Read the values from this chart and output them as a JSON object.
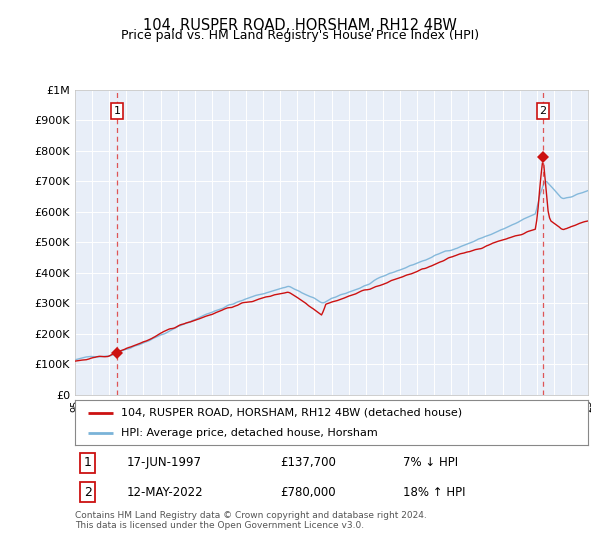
{
  "title": "104, RUSPER ROAD, HORSHAM, RH12 4BW",
  "subtitle": "Price paid vs. HM Land Registry's House Price Index (HPI)",
  "legend_line1": "104, RUSPER ROAD, HORSHAM, RH12 4BW (detached house)",
  "legend_line2": "HPI: Average price, detached house, Horsham",
  "annotation1_date": "17-JUN-1997",
  "annotation1_price": "£137,700",
  "annotation1_hpi": "7% ↓ HPI",
  "annotation2_date": "12-MAY-2022",
  "annotation2_price": "£780,000",
  "annotation2_hpi": "18% ↑ HPI",
  "footnote": "Contains HM Land Registry data © Crown copyright and database right 2024.\nThis data is licensed under the Open Government Licence v3.0.",
  "hpi_color": "#7ab3d8",
  "price_color": "#cc1111",
  "marker_color": "#cc1111",
  "dashed_color": "#dd4444",
  "background_plot": "#e8eef8",
  "ylim": [
    0,
    1000000
  ],
  "yticks": [
    0,
    100000,
    200000,
    300000,
    400000,
    500000,
    600000,
    700000,
    800000,
    900000,
    1000000
  ],
  "sale1_year": 1997.46,
  "sale1_value": 137700,
  "sale2_year": 2022.37,
  "sale2_value": 780000,
  "grid_color": "#ffffff",
  "spine_color": "#bbbbbb"
}
